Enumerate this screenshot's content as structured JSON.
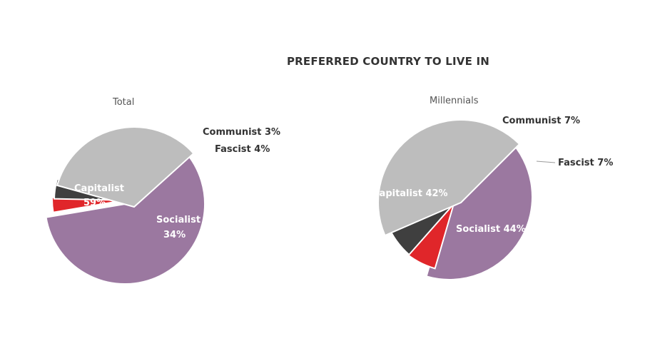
{
  "title": "PREFERRED COUNTRY TO LIVE IN",
  "colors": {
    "Capitalist": "#9b78a0",
    "Communist": "#e0262a",
    "Fascist": "#3f3f3f",
    "Socialist": "#bdbdbd"
  },
  "chart_data": [
    {
      "type": "pie",
      "title": "Total",
      "slices": [
        {
          "label": "Capitalist",
          "value": 59,
          "display": "59%"
        },
        {
          "label": "Communist",
          "value": 3,
          "display": "3%"
        },
        {
          "label": "Fascist",
          "value": 4,
          "display": "4%"
        },
        {
          "label": "Socialist",
          "value": 34,
          "display": "34%"
        }
      ]
    },
    {
      "type": "pie",
      "title": "Millennials",
      "slices": [
        {
          "label": "Capitalist",
          "value": 42,
          "display": "42%"
        },
        {
          "label": "Communist",
          "value": 7,
          "display": "7%"
        },
        {
          "label": "Fascist",
          "value": 7,
          "display": "7%"
        },
        {
          "label": "Socialist",
          "value": 44,
          "display": "44%"
        }
      ]
    }
  ]
}
